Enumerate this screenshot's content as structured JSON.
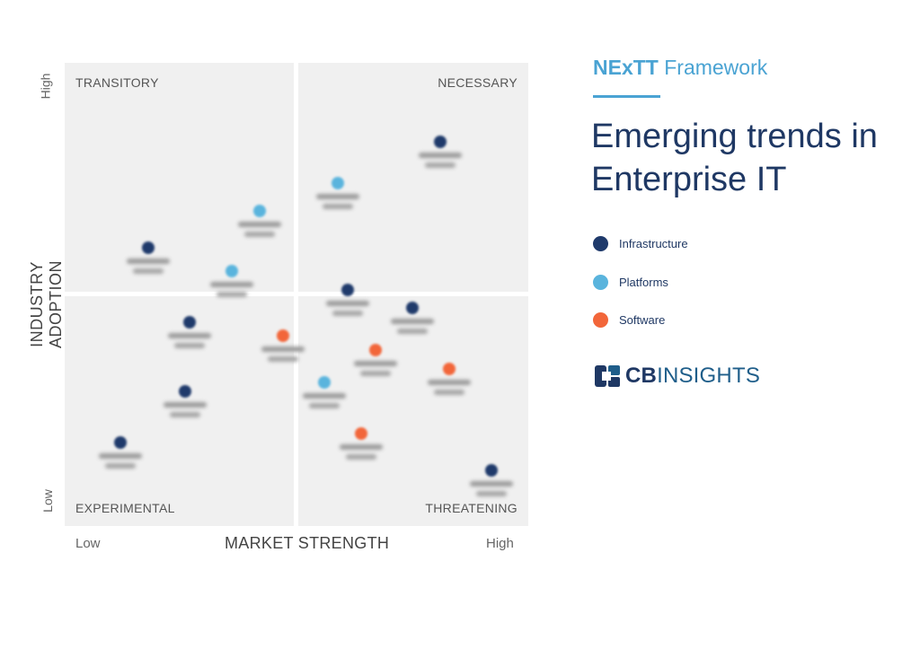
{
  "framework": {
    "title_bold": "NExTT",
    "title_rest": "Framework"
  },
  "headline": "Emerging trends in Enterprise IT",
  "quadrants": {
    "top_left": "TRANSITORY",
    "top_right": "NECESSARY",
    "bottom_left": "EXPERIMENTAL",
    "bottom_right": "THREATENING"
  },
  "axes": {
    "y_title": "INDUSTRY ADOPTION",
    "y_high": "High",
    "y_low": "Low",
    "x_title": "MARKET STRENGTH",
    "x_low": "Low",
    "x_high": "High"
  },
  "legend": [
    {
      "label": "Infrastructure",
      "color": "#1f3a6b"
    },
    {
      "label": "Platforms",
      "color": "#5ab4dd"
    },
    {
      "label": "Software",
      "color": "#f2663a"
    }
  ],
  "logo": {
    "bold": "CB",
    "rest": "INSIGHTS"
  },
  "chart_data": {
    "type": "scatter",
    "note_blurred_labels": true,
    "points": [
      {
        "category": "Infrastructure",
        "x": 0.81,
        "y": 0.83
      },
      {
        "category": "Platforms",
        "x": 0.59,
        "y": 0.74
      },
      {
        "category": "Platforms",
        "x": 0.42,
        "y": 0.68
      },
      {
        "category": "Infrastructure",
        "x": 0.18,
        "y": 0.6
      },
      {
        "category": "Platforms",
        "x": 0.36,
        "y": 0.55
      },
      {
        "category": "Infrastructure",
        "x": 0.61,
        "y": 0.51
      },
      {
        "category": "Infrastructure",
        "x": 0.75,
        "y": 0.47
      },
      {
        "category": "Infrastructure",
        "x": 0.27,
        "y": 0.44
      },
      {
        "category": "Software",
        "x": 0.47,
        "y": 0.41
      },
      {
        "category": "Software",
        "x": 0.67,
        "y": 0.38
      },
      {
        "category": "Software",
        "x": 0.83,
        "y": 0.34
      },
      {
        "category": "Platforms",
        "x": 0.56,
        "y": 0.31
      },
      {
        "category": "Infrastructure",
        "x": 0.26,
        "y": 0.29
      },
      {
        "category": "Software",
        "x": 0.64,
        "y": 0.2
      },
      {
        "category": "Infrastructure",
        "x": 0.12,
        "y": 0.18
      },
      {
        "category": "Infrastructure",
        "x": 0.92,
        "y": 0.12
      }
    ]
  }
}
